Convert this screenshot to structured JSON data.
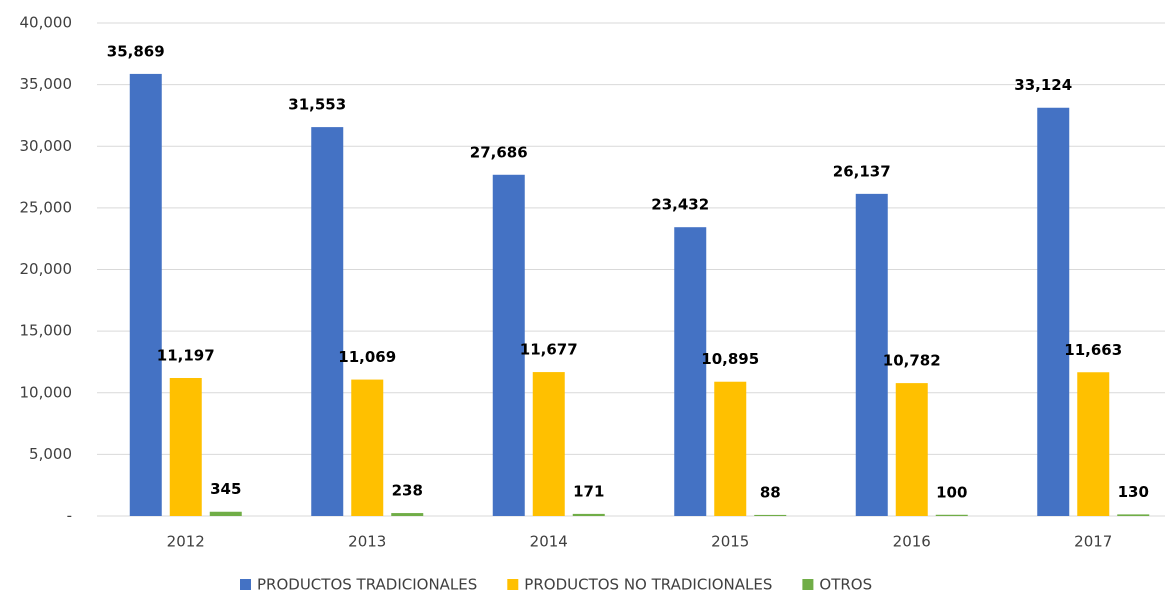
{
  "chart_data": {
    "type": "bar",
    "categories": [
      "2012",
      "2013",
      "2014",
      "2015",
      "2016",
      "2017"
    ],
    "series": [
      {
        "name": "PRODUCTOS TRADICIONALES",
        "color": "#4472c4",
        "values": [
          35869,
          31553,
          27686,
          23432,
          26137,
          33124
        ],
        "value_labels": [
          "35,869",
          "31,553",
          "27,686",
          "23,432",
          "26,137",
          "33,124"
        ]
      },
      {
        "name": "PRODUCTOS NO TRADICIONALES",
        "color": "#ffc000",
        "values": [
          11197,
          11069,
          11677,
          10895,
          10782,
          11663
        ],
        "value_labels": [
          "11,197",
          "11,069",
          "11,677",
          "10,895",
          "10,782",
          "11,663"
        ]
      },
      {
        "name": "OTROS",
        "color": "#70ad47",
        "values": [
          345,
          238,
          171,
          88,
          100,
          130
        ]
      }
    ],
    "ylim": [
      0,
      40000
    ],
    "yticks": [
      {
        "value": 0,
        "label": "-"
      },
      {
        "value": 5000,
        "label": "5,000"
      },
      {
        "value": 10000,
        "label": "10,000"
      },
      {
        "value": 15000,
        "label": "15,000"
      },
      {
        "value": 20000,
        "label": "20,000"
      },
      {
        "value": 25000,
        "label": "25,000"
      },
      {
        "value": 30000,
        "label": "30,000"
      },
      {
        "value": 35000,
        "label": "35,000"
      },
      {
        "value": 40000,
        "label": "40,000"
      }
    ],
    "grid": true,
    "legend": "bottom"
  }
}
